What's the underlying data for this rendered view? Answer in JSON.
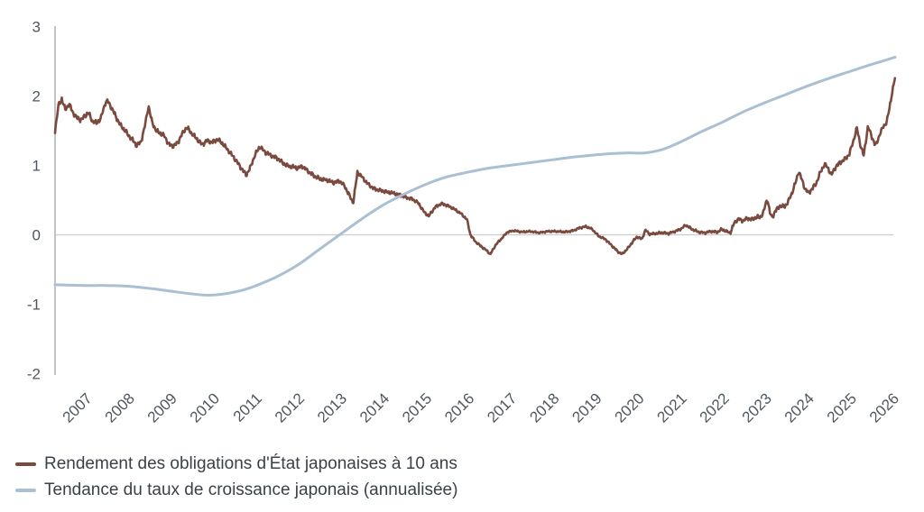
{
  "chart_data": {
    "type": "line",
    "title": "",
    "xlabel": "",
    "ylabel": "",
    "grid": "zero-line-only",
    "legend_position": "bottom-left",
    "x_axis": {
      "range": [
        2006.3,
        2026.08
      ],
      "tick_years": [
        2007,
        2008,
        2009,
        2010,
        2011,
        2012,
        2013,
        2014,
        2015,
        2016,
        2017,
        2018,
        2019,
        2020,
        2021,
        2022,
        2023,
        2024,
        2025,
        2026
      ],
      "tick_rotation_deg": -45
    },
    "y_axis": {
      "range": [
        -2,
        3
      ],
      "ticks": [
        3,
        2,
        1,
        0,
        -1,
        -2
      ],
      "tick_labels": [
        "3",
        "2",
        "1",
        "0",
        "-1",
        "-2"
      ]
    },
    "series": [
      {
        "name": "Rendement des obligations d'État japonaises à 10 ans",
        "color": "#7a4a3e",
        "style": "noisy",
        "stroke_width": 2.6,
        "points": [
          [
            2006.3,
            1.5
          ],
          [
            2006.38,
            1.86
          ],
          [
            2006.46,
            1.96
          ],
          [
            2006.54,
            1.8
          ],
          [
            2006.63,
            1.89
          ],
          [
            2006.72,
            1.76
          ],
          [
            2006.82,
            1.68
          ],
          [
            2006.92,
            1.66
          ],
          [
            2007.0,
            1.71
          ],
          [
            2007.08,
            1.76
          ],
          [
            2007.18,
            1.64
          ],
          [
            2007.28,
            1.61
          ],
          [
            2007.38,
            1.68
          ],
          [
            2007.48,
            1.9
          ],
          [
            2007.54,
            1.93
          ],
          [
            2007.62,
            1.84
          ],
          [
            2007.72,
            1.72
          ],
          [
            2007.82,
            1.6
          ],
          [
            2007.92,
            1.52
          ],
          [
            2008.02,
            1.44
          ],
          [
            2008.12,
            1.37
          ],
          [
            2008.22,
            1.29
          ],
          [
            2008.32,
            1.33
          ],
          [
            2008.42,
            1.58
          ],
          [
            2008.5,
            1.86
          ],
          [
            2008.58,
            1.63
          ],
          [
            2008.68,
            1.5
          ],
          [
            2008.78,
            1.46
          ],
          [
            2008.88,
            1.42
          ],
          [
            2008.98,
            1.3
          ],
          [
            2009.08,
            1.28
          ],
          [
            2009.18,
            1.32
          ],
          [
            2009.28,
            1.44
          ],
          [
            2009.4,
            1.55
          ],
          [
            2009.52,
            1.46
          ],
          [
            2009.64,
            1.38
          ],
          [
            2009.76,
            1.3
          ],
          [
            2009.88,
            1.36
          ],
          [
            2010.0,
            1.33
          ],
          [
            2010.12,
            1.38
          ],
          [
            2010.25,
            1.31
          ],
          [
            2010.4,
            1.2
          ],
          [
            2010.55,
            1.08
          ],
          [
            2010.7,
            0.95
          ],
          [
            2010.8,
            0.86
          ],
          [
            2010.9,
            0.97
          ],
          [
            2011.0,
            1.14
          ],
          [
            2011.12,
            1.27
          ],
          [
            2011.25,
            1.19
          ],
          [
            2011.4,
            1.14
          ],
          [
            2011.55,
            1.1
          ],
          [
            2011.65,
            1.04
          ],
          [
            2011.75,
            1.0
          ],
          [
            2011.88,
            0.98
          ],
          [
            2012.0,
            0.96
          ],
          [
            2012.12,
            0.99
          ],
          [
            2012.25,
            0.92
          ],
          [
            2012.4,
            0.85
          ],
          [
            2012.55,
            0.8
          ],
          [
            2012.7,
            0.79
          ],
          [
            2012.85,
            0.75
          ],
          [
            2013.0,
            0.78
          ],
          [
            2013.12,
            0.7
          ],
          [
            2013.22,
            0.58
          ],
          [
            2013.32,
            0.46
          ],
          [
            2013.42,
            0.9
          ],
          [
            2013.52,
            0.84
          ],
          [
            2013.65,
            0.74
          ],
          [
            2013.8,
            0.67
          ],
          [
            2013.95,
            0.64
          ],
          [
            2014.1,
            0.62
          ],
          [
            2014.25,
            0.6
          ],
          [
            2014.4,
            0.58
          ],
          [
            2014.55,
            0.54
          ],
          [
            2014.7,
            0.52
          ],
          [
            2014.85,
            0.46
          ],
          [
            2015.0,
            0.32
          ],
          [
            2015.1,
            0.27
          ],
          [
            2015.25,
            0.4
          ],
          [
            2015.4,
            0.45
          ],
          [
            2015.55,
            0.42
          ],
          [
            2015.7,
            0.37
          ],
          [
            2015.85,
            0.31
          ],
          [
            2016.0,
            0.22
          ],
          [
            2016.08,
            0.0
          ],
          [
            2016.2,
            -0.1
          ],
          [
            2016.32,
            -0.16
          ],
          [
            2016.45,
            -0.22
          ],
          [
            2016.55,
            -0.28
          ],
          [
            2016.68,
            -0.14
          ],
          [
            2016.82,
            -0.05
          ],
          [
            2016.95,
            0.04
          ],
          [
            2017.1,
            0.06
          ],
          [
            2017.3,
            0.04
          ],
          [
            2017.5,
            0.05
          ],
          [
            2017.7,
            0.03
          ],
          [
            2017.9,
            0.05
          ],
          [
            2018.1,
            0.05
          ],
          [
            2018.3,
            0.04
          ],
          [
            2018.5,
            0.06
          ],
          [
            2018.65,
            0.1
          ],
          [
            2018.8,
            0.12
          ],
          [
            2018.95,
            0.08
          ],
          [
            2019.1,
            -0.02
          ],
          [
            2019.25,
            -0.06
          ],
          [
            2019.4,
            -0.15
          ],
          [
            2019.55,
            -0.24
          ],
          [
            2019.65,
            -0.28
          ],
          [
            2019.78,
            -0.2
          ],
          [
            2019.9,
            -0.1
          ],
          [
            2020.0,
            -0.03
          ],
          [
            2020.12,
            -0.06
          ],
          [
            2020.2,
            0.07
          ],
          [
            2020.3,
            0.01
          ],
          [
            2020.45,
            0.02
          ],
          [
            2020.6,
            0.03
          ],
          [
            2020.75,
            0.02
          ],
          [
            2020.9,
            0.05
          ],
          [
            2021.05,
            0.09
          ],
          [
            2021.15,
            0.14
          ],
          [
            2021.3,
            0.08
          ],
          [
            2021.45,
            0.04
          ],
          [
            2021.6,
            0.03
          ],
          [
            2021.75,
            0.05
          ],
          [
            2021.9,
            0.04
          ],
          [
            2022.0,
            0.08
          ],
          [
            2022.1,
            0.05
          ],
          [
            2022.2,
            0.03
          ],
          [
            2022.3,
            0.18
          ],
          [
            2022.4,
            0.23
          ],
          [
            2022.5,
            0.2
          ],
          [
            2022.6,
            0.24
          ],
          [
            2022.7,
            0.22
          ],
          [
            2022.8,
            0.25
          ],
          [
            2022.9,
            0.25
          ],
          [
            2022.98,
            0.32
          ],
          [
            2023.04,
            0.47
          ],
          [
            2023.08,
            0.5
          ],
          [
            2023.13,
            0.32
          ],
          [
            2023.18,
            0.25
          ],
          [
            2023.26,
            0.34
          ],
          [
            2023.36,
            0.42
          ],
          [
            2023.46,
            0.4
          ],
          [
            2023.55,
            0.46
          ],
          [
            2023.65,
            0.6
          ],
          [
            2023.74,
            0.76
          ],
          [
            2023.81,
            0.92
          ],
          [
            2023.88,
            0.8
          ],
          [
            2023.96,
            0.66
          ],
          [
            2024.04,
            0.6
          ],
          [
            2024.12,
            0.66
          ],
          [
            2024.22,
            0.74
          ],
          [
            2024.32,
            0.9
          ],
          [
            2024.42,
            1.02
          ],
          [
            2024.5,
            0.96
          ],
          [
            2024.58,
            0.86
          ],
          [
            2024.68,
            0.98
          ],
          [
            2024.78,
            1.04
          ],
          [
            2024.88,
            1.08
          ],
          [
            2025.0,
            1.16
          ],
          [
            2025.1,
            1.36
          ],
          [
            2025.18,
            1.54
          ],
          [
            2025.26,
            1.3
          ],
          [
            2025.34,
            1.14
          ],
          [
            2025.44,
            1.56
          ],
          [
            2025.54,
            1.4
          ],
          [
            2025.62,
            1.28
          ],
          [
            2025.72,
            1.45
          ],
          [
            2025.8,
            1.56
          ],
          [
            2025.88,
            1.62
          ],
          [
            2025.94,
            1.8
          ],
          [
            2026.0,
            2.02
          ],
          [
            2026.08,
            2.27
          ]
        ],
        "jitter_amplitude_by_year": [
          [
            2006.3,
            0.045
          ],
          [
            2013.6,
            0.035
          ],
          [
            2016.9,
            0.016
          ],
          [
            2021.8,
            0.022
          ],
          [
            2023.0,
            0.04
          ],
          [
            2026.08,
            0.04
          ]
        ]
      },
      {
        "name": "Tendance du taux de croissance japonais (annualisée)",
        "color": "#abbfd3",
        "style": "smooth",
        "stroke_width": 3,
        "points": [
          [
            2006.3,
            -0.72
          ],
          [
            2007.0,
            -0.73
          ],
          [
            2007.5,
            -0.73
          ],
          [
            2008.0,
            -0.74
          ],
          [
            2008.5,
            -0.77
          ],
          [
            2009.0,
            -0.81
          ],
          [
            2009.5,
            -0.85
          ],
          [
            2009.9,
            -0.87
          ],
          [
            2010.3,
            -0.85
          ],
          [
            2010.7,
            -0.8
          ],
          [
            2011.0,
            -0.74
          ],
          [
            2011.5,
            -0.61
          ],
          [
            2012.0,
            -0.44
          ],
          [
            2012.5,
            -0.22
          ],
          [
            2013.0,
            0.0
          ],
          [
            2013.5,
            0.22
          ],
          [
            2014.0,
            0.42
          ],
          [
            2014.5,
            0.58
          ],
          [
            2015.0,
            0.72
          ],
          [
            2015.5,
            0.83
          ],
          [
            2016.0,
            0.9
          ],
          [
            2016.5,
            0.96
          ],
          [
            2017.0,
            1.0
          ],
          [
            2017.5,
            1.04
          ],
          [
            2018.0,
            1.08
          ],
          [
            2018.5,
            1.12
          ],
          [
            2019.0,
            1.15
          ],
          [
            2019.4,
            1.17
          ],
          [
            2019.8,
            1.18
          ],
          [
            2020.2,
            1.18
          ],
          [
            2020.6,
            1.23
          ],
          [
            2021.0,
            1.33
          ],
          [
            2021.5,
            1.48
          ],
          [
            2022.0,
            1.62
          ],
          [
            2022.5,
            1.77
          ],
          [
            2023.0,
            1.9
          ],
          [
            2023.5,
            2.02
          ],
          [
            2024.0,
            2.14
          ],
          [
            2024.5,
            2.25
          ],
          [
            2025.0,
            2.35
          ],
          [
            2025.5,
            2.45
          ],
          [
            2026.08,
            2.56
          ]
        ]
      }
    ]
  },
  "legend": {
    "items": [
      {
        "label": "Rendement des obligations d'État japonaises à 10 ans",
        "color": "#7a4a3e"
      },
      {
        "label": "Tendance du taux de croissance japonais (annualisée)",
        "color": "#abbfd3"
      }
    ]
  },
  "style": {
    "axis_line_color": "#b9bdc1",
    "zero_line_color": "#cccccc",
    "tick_text_color": "#4f575e",
    "legend_text_color": "#3a4149",
    "background": "#ffffff"
  }
}
